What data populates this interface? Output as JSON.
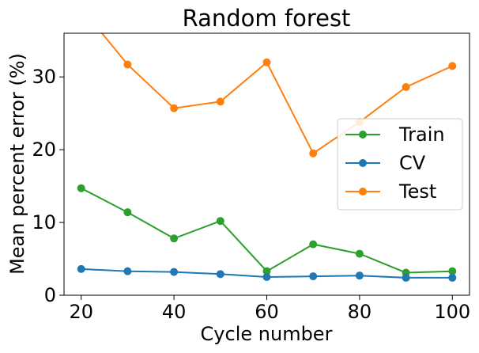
{
  "chart_data": {
    "type": "line",
    "title": "Random forest",
    "xlabel": "Cycle number",
    "ylabel": "Mean percent error (%)",
    "xlim": [
      16.3,
      103.7
    ],
    "ylim": [
      0,
      36
    ],
    "xticks": [
      20,
      40,
      60,
      80,
      100
    ],
    "yticks": [
      0,
      10,
      20,
      30
    ],
    "x": [
      20,
      30,
      40,
      50,
      60,
      70,
      80,
      90,
      100
    ],
    "legend_position": "center-right",
    "grid": false,
    "series": [
      {
        "name": "Train",
        "color": "#2ca02c",
        "values": [
          14.7,
          11.4,
          7.8,
          10.2,
          3.3,
          7.0,
          5.7,
          3.1,
          3.3
        ]
      },
      {
        "name": "CV",
        "color": "#1f77b4",
        "values": [
          3.6,
          3.3,
          3.2,
          2.9,
          2.5,
          2.6,
          2.7,
          2.4,
          2.4
        ]
      },
      {
        "name": "Test",
        "color": "#ff7f0e",
        "values": [
          39.5,
          31.7,
          25.7,
          26.6,
          32.0,
          19.5,
          23.8,
          28.6,
          31.5
        ]
      }
    ]
  }
}
